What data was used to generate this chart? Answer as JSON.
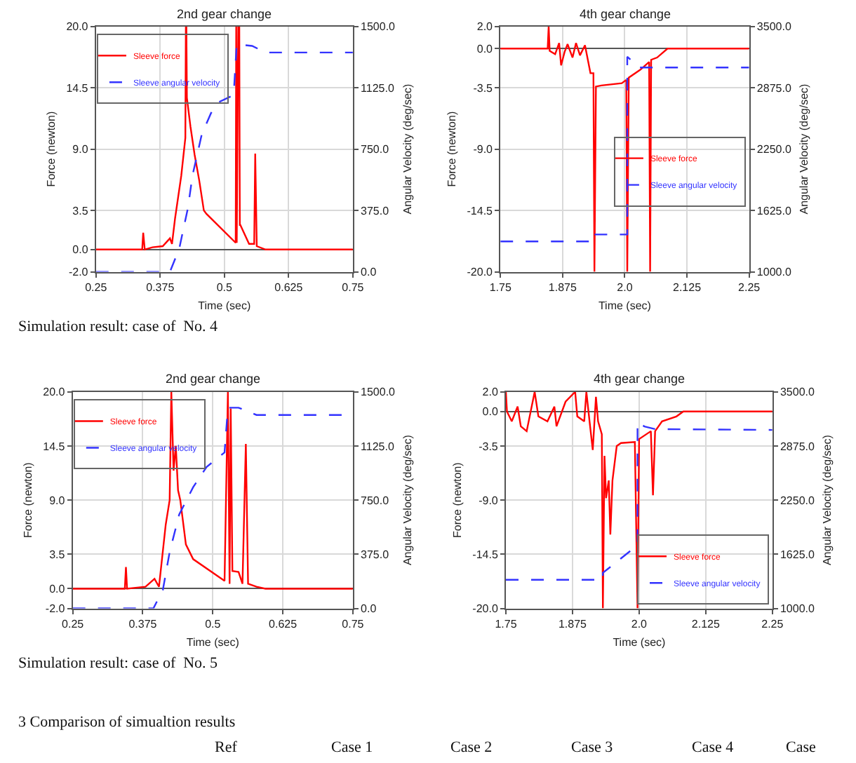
{
  "chart_data": [
    {
      "type": "line",
      "title": "2nd gear change",
      "xlabel": "Time (sec)",
      "ylabel": "Force (newton)",
      "y2label": "Angular Velocity (deg/sec)",
      "grid": true,
      "legend": "top left",
      "xlim": [
        0.25,
        0.75
      ],
      "xticks": [
        0.25,
        0.375,
        0.5,
        0.625,
        0.75
      ],
      "ylim": [
        -2,
        20
      ],
      "yticks": [
        {
          "value": -2,
          "label": "-2.0"
        },
        {
          "value": 0,
          "label": "0.0"
        },
        3.5,
        {
          "value": 9,
          "label": "9.0"
        },
        14.5,
        {
          "value": 20,
          "label": "20.0"
        }
      ],
      "y2lim": [
        0,
        1500
      ],
      "y2ticks": [
        {
          "value": 0,
          "label": "0.0"
        },
        {
          "value": 375,
          "label": "375.0"
        },
        {
          "value": 750,
          "label": "750.0"
        },
        {
          "value": 1125,
          "label": "1125.0"
        },
        {
          "value": 1500,
          "label": "1500.0"
        }
      ],
      "series": [
        {
          "name": "Sleeve force",
          "color": "#ff0000",
          "line_style": "solid",
          "x": [
            0.25,
            0.34,
            0.342,
            0.345,
            0.36,
            0.38,
            0.394,
            0.398,
            0.404,
            0.416,
            0.424,
            0.425,
            0.426,
            0.427,
            0.434,
            0.442,
            0.451,
            0.46,
            0.465,
            0.522,
            0.523,
            0.524,
            0.527,
            0.529,
            0.53,
            0.531,
            0.548,
            0.558,
            0.56,
            0.563,
            0.58,
            0.75
          ],
          "values": [
            0,
            0,
            1.5,
            0,
            0.2,
            0.3,
            1.0,
            0.5,
            2.8,
            6.6,
            10,
            20,
            20,
            13.6,
            11,
            8.5,
            6.2,
            3.5,
            3.2,
            0.6,
            20,
            0.6,
            20,
            20,
            2.2,
            2.2,
            0.5,
            0.5,
            8.6,
            0.3,
            0,
            0
          ]
        },
        {
          "name": "Sleeve angular velocity",
          "color": "#3333ff",
          "line_style": "dashed",
          "axis": "y2",
          "x": [
            0.25,
            0.394,
            0.412,
            0.429,
            0.438,
            0.456,
            0.474,
            0.491,
            0.518,
            0.524,
            0.554,
            0.58,
            0.75
          ],
          "values": [
            0,
            0,
            140,
            390,
            590,
            840,
            970,
            1040,
            1080,
            1390,
            1380,
            1340,
            1340
          ]
        }
      ],
      "annotations": [
        "Simulation result: case of  No. 4"
      ]
    },
    {
      "type": "line",
      "title": "4th gear change",
      "xlabel": "Time (sec)",
      "ylabel": "Force (newton)",
      "y2label": "Angular Velocity (deg/sec)",
      "grid": true,
      "legend": "right",
      "xlim": [
        1.75,
        2.25
      ],
      "xticks": [
        1.75,
        1.875,
        {
          "value": 2,
          "label": "2.0"
        },
        2.125,
        2.25
      ],
      "ylim": [
        -20,
        2
      ],
      "yticks": [
        {
          "value": -20,
          "label": "-20.0"
        },
        -14.5,
        {
          "value": -9,
          "label": "-9.0"
        },
        -3.5,
        {
          "value": 0,
          "label": "0.0"
        },
        {
          "value": 2,
          "label": "2.0"
        }
      ],
      "y2lim": [
        1000,
        3500
      ],
      "y2ticks": [
        {
          "value": 1000,
          "label": "1000.0"
        },
        {
          "value": 1625,
          "label": "1625.0"
        },
        {
          "value": 2250,
          "label": "2250.0"
        },
        {
          "value": 2875,
          "label": "2875.0"
        },
        {
          "value": 3500,
          "label": "3500.0"
        }
      ],
      "series": [
        {
          "name": "Sleeve force",
          "color": "#ff0000",
          "line_style": "solid",
          "x": [
            1.75,
            1.845,
            1.847,
            1.849,
            1.86,
            1.868,
            1.872,
            1.879,
            1.885,
            1.895,
            1.902,
            1.91,
            1.92,
            1.931,
            1.937,
            1.939,
            1.942,
            1.953,
            1.994,
            2.003,
            2.005,
            2.008,
            2.031,
            2.049,
            2.051,
            2.053,
            2.065,
            2.086,
            2.25
          ],
          "values": [
            0,
            0,
            2,
            -0.2,
            -0.5,
            0.5,
            -1.5,
            -0.3,
            0.4,
            -0.8,
            0.5,
            -0.6,
            0.3,
            -2.2,
            -2.2,
            -20,
            -3.4,
            -3.3,
            -3.1,
            -2.8,
            -20,
            -2.6,
            -1.9,
            -1.2,
            -20,
            -1.0,
            -0.8,
            0,
            0
          ]
        },
        {
          "name": "Sleeve angular velocity",
          "color": "#3333ff",
          "line_style": "dashed",
          "axis": "y2",
          "x": [
            1.75,
            1.938,
            1.938,
            2.005,
            2.005,
            2.03,
            2.25
          ],
          "values": [
            1310,
            1310,
            1380,
            1380,
            3190,
            3080,
            3080
          ]
        }
      ]
    },
    {
      "type": "line",
      "title": "2nd gear change",
      "xlabel": "Time (sec)",
      "ylabel": "Force (newton)",
      "y2label": "Angular Velocity (deg/sec)",
      "grid": true,
      "legend": "top left",
      "xlim": [
        0.25,
        0.75
      ],
      "xticks": [
        0.25,
        0.375,
        0.5,
        0.625,
        0.75
      ],
      "ylim": [
        -2,
        20
      ],
      "yticks": [
        {
          "value": -2,
          "label": "-2.0"
        },
        {
          "value": 0,
          "label": "0.0"
        },
        3.5,
        {
          "value": 9,
          "label": "9.0"
        },
        14.5,
        {
          "value": 20,
          "label": "20.0"
        }
      ],
      "y2lim": [
        0,
        1500
      ],
      "y2ticks": [
        {
          "value": 0,
          "label": "0.0"
        },
        {
          "value": 375,
          "label": "375.0"
        },
        {
          "value": 750,
          "label": "750.0"
        },
        {
          "value": 1125,
          "label": "1125.0"
        },
        {
          "value": 1500,
          "label": "1500.0"
        }
      ],
      "series": [
        {
          "name": "Sleeve force",
          "color": "#ff0000",
          "line_style": "solid",
          "x": [
            0.25,
            0.343,
            0.345,
            0.347,
            0.38,
            0.396,
            0.404,
            0.416,
            0.423,
            0.426,
            0.43,
            0.434,
            0.438,
            0.442,
            0.452,
            0.465,
            0.521,
            0.527,
            0.53,
            0.532,
            0.535,
            0.546,
            0.553,
            0.559,
            0.563,
            0.578,
            0.594,
            0.75
          ],
          "values": [
            0,
            0,
            2.2,
            0,
            0.2,
            1.0,
            0.2,
            6.5,
            9,
            20,
            12,
            14.5,
            10,
            9,
            4.5,
            3,
            0.8,
            20,
            0.5,
            18.3,
            1.8,
            1.7,
            0.5,
            14.7,
            0.5,
            0.2,
            0,
            0
          ]
        },
        {
          "name": "Sleeve angular velocity",
          "color": "#3333ff",
          "line_style": "dashed",
          "axis": "y2",
          "x": [
            0.25,
            0.394,
            0.411,
            0.423,
            0.44,
            0.465,
            0.489,
            0.521,
            0.527,
            0.546,
            0.578,
            0.75
          ],
          "values": [
            0,
            0,
            130,
            390,
            650,
            840,
            980,
            1080,
            1390,
            1390,
            1340,
            1340
          ]
        }
      ],
      "annotations": [
        "Simulation result: case of  No. 5"
      ]
    },
    {
      "type": "line",
      "title": "4th gear change",
      "xlabel": "Time (sec)",
      "ylabel": "Force (newton)",
      "y2label": "Angular Velocity (deg/sec)",
      "grid": true,
      "legend": "bottom right",
      "xlim": [
        1.75,
        2.25
      ],
      "xticks": [
        1.75,
        1.875,
        {
          "value": 2,
          "label": "2.0"
        },
        2.125,
        2.25
      ],
      "ylim": [
        -20,
        2
      ],
      "yticks": [
        {
          "value": -20,
          "label": "-20.0"
        },
        -14.5,
        {
          "value": -9,
          "label": "-9.0"
        },
        -3.5,
        {
          "value": 0,
          "label": "0.0"
        },
        {
          "value": 2,
          "label": "2.0"
        }
      ],
      "y2lim": [
        1000,
        3500
      ],
      "y2ticks": [
        {
          "value": 1000,
          "label": "1000.0"
        },
        {
          "value": 1625,
          "label": "1625.0"
        },
        {
          "value": 2250,
          "label": "2250.0"
        },
        {
          "value": 2875,
          "label": "2875.0"
        },
        {
          "value": 3500,
          "label": "3500.0"
        }
      ],
      "series": [
        {
          "name": "Sleeve force",
          "color": "#ff0000",
          "line_style": "solid",
          "x": [
            1.75,
            1.752,
            1.761,
            1.772,
            1.778,
            1.789,
            1.804,
            1.811,
            1.828,
            1.841,
            1.845,
            1.862,
            1.88,
            1.884,
            1.897,
            1.901,
            1.907,
            1.913,
            1.919,
            1.923,
            1.93,
            1.932,
            1.935,
            1.938,
            1.943,
            1.946,
            1.95,
            1.958,
            1.966,
            1.992,
            1.997,
            2.0,
            2.022,
            2.026,
            2.03,
            2.043,
            2.07,
            2.083,
            2.25
          ],
          "values": [
            2,
            0,
            -1,
            0.5,
            -1.5,
            -2,
            2,
            -0.5,
            -1,
            0.5,
            -1.5,
            1,
            2,
            -0.5,
            -1,
            2,
            -1,
            -3.9,
            1.5,
            -1,
            -2.3,
            -20,
            -4.5,
            -8.8,
            -7,
            -12.5,
            -7,
            -3.5,
            -3.2,
            -3.1,
            -20,
            -2.8,
            -2,
            -8.5,
            -2,
            -1,
            -0.5,
            0,
            0
          ]
        },
        {
          "name": "Sleeve angular velocity",
          "color": "#3333ff",
          "line_style": "dashed",
          "axis": "y2",
          "x": [
            1.75,
            1.932,
            1.932,
            1.997,
            1.997,
            2.01,
            2.03,
            2.25
          ],
          "values": [
            1330,
            1330,
            1410,
            1730,
            3150,
            3100,
            3070,
            3060
          ]
        }
      ],
      "annotations": [
        "3 Comparison of simualtion results",
        "Ref",
        "Case 1",
        "Case 2",
        "Case 3",
        "Case 4",
        "Case"
      ]
    }
  ]
}
